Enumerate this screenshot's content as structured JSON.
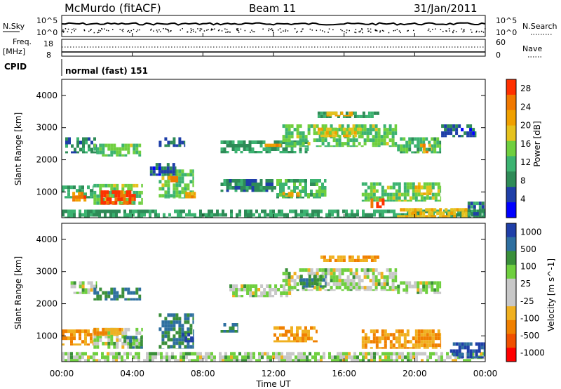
{
  "header": {
    "station": "McMurdo (fitACF)",
    "beam": "Beam 11",
    "date": "31/Jan/2011"
  },
  "noise_panel": {
    "left_label": "N.Sky",
    "right_label": "N.Search",
    "left_ticks": [
      "10^5",
      "10^0"
    ],
    "right_ticks": [
      "10^5",
      "10^0"
    ]
  },
  "freq_panel": {
    "left_label_1": "Freq.",
    "left_label_2": "[MHz]",
    "right_label": "Nave",
    "left_ticks": [
      "18",
      "8"
    ],
    "right_ticks": [
      "60",
      "0"
    ]
  },
  "cpid": {
    "label": "CPID",
    "value": "normal (fast) 151"
  },
  "x_axis": {
    "title": "Time UT",
    "ticks": [
      "00:00",
      "04:00",
      "08:00",
      "12:00",
      "16:00",
      "20:00",
      "00:00"
    ]
  },
  "colors": {
    "power_scale": [
      "#0000ff",
      "#1f3fa8",
      "#2e8b57",
      "#3cb371",
      "#6fcf3f",
      "#e6c21e",
      "#f0a000",
      "#f07800",
      "#ff3000"
    ],
    "velocity_scale": [
      "#ff0000",
      "#f05000",
      "#f08000",
      "#f0b020",
      "#c8c8c8",
      "#c8c8c8",
      "#6fcf3f",
      "#3a8f3a",
      "#2e6fa0",
      "#1f3fa8"
    ]
  },
  "chart_data": [
    {
      "type": "heatmap",
      "title": "",
      "xlabel": "Time UT",
      "ylabel": "Slant Range [km]",
      "xlim": [
        0,
        24
      ],
      "ylim": [
        200,
        4500
      ],
      "y_ticks": [
        "1000",
        "2000",
        "3000",
        "4000"
      ],
      "colorbar": {
        "label": "Power [dB]",
        "ticks": [
          "4",
          "8",
          "12",
          "16",
          "20",
          "24",
          "28"
        ],
        "range": [
          0,
          30
        ]
      },
      "regions": [
        {
          "t0": 0.2,
          "t1": 2.0,
          "r0": 2200,
          "r1": 2700,
          "v": 8
        },
        {
          "t0": 1.8,
          "t1": 4.5,
          "r0": 2100,
          "r1": 2500,
          "v": 14
        },
        {
          "t0": 5.5,
          "t1": 7.0,
          "r0": 2400,
          "r1": 2700,
          "v": 6
        },
        {
          "t0": 9.0,
          "t1": 14.0,
          "r0": 2200,
          "r1": 2600,
          "v": 10
        },
        {
          "t0": 11.5,
          "t1": 13.0,
          "r0": 2400,
          "r1": 2500,
          "v": 22
        },
        {
          "t0": 12.5,
          "t1": 19.0,
          "r0": 2400,
          "r1": 3100,
          "v": 14
        },
        {
          "t0": 14.5,
          "t1": 17.0,
          "r0": 2700,
          "r1": 3000,
          "v": 18
        },
        {
          "t0": 19.0,
          "t1": 21.5,
          "r0": 2200,
          "r1": 2700,
          "v": 12
        },
        {
          "t0": 20.3,
          "t1": 21.0,
          "r0": 2200,
          "r1": 2500,
          "v": 22
        },
        {
          "t0": 14.5,
          "t1": 18.0,
          "r0": 3300,
          "r1": 3500,
          "v": 10
        },
        {
          "t0": 15.0,
          "t1": 16.5,
          "r0": 3350,
          "r1": 3500,
          "v": 20
        },
        {
          "t0": 21.5,
          "t1": 23.5,
          "r0": 2700,
          "r1": 3100,
          "v": 6
        },
        {
          "t0": 0.0,
          "t1": 1.8,
          "r0": 800,
          "r1": 1200,
          "v": 10
        },
        {
          "t0": 0.6,
          "t1": 1.4,
          "r0": 700,
          "r1": 1000,
          "v": 24
        },
        {
          "t0": 1.8,
          "t1": 4.6,
          "r0": 600,
          "r1": 1250,
          "v": 14
        },
        {
          "t0": 2.2,
          "t1": 4.2,
          "r0": 600,
          "r1": 1050,
          "v": 28
        },
        {
          "t0": 5.5,
          "t1": 7.5,
          "r0": 800,
          "r1": 1700,
          "v": 14
        },
        {
          "t0": 6.0,
          "t1": 6.6,
          "r0": 1300,
          "r1": 1600,
          "v": 24
        },
        {
          "t0": 7.0,
          "t1": 7.6,
          "r0": 800,
          "r1": 1000,
          "v": 22
        },
        {
          "t0": 9.0,
          "t1": 12.0,
          "r0": 1000,
          "r1": 1400,
          "v": 8
        },
        {
          "t0": 12.0,
          "t1": 15.0,
          "r0": 800,
          "r1": 1400,
          "v": 12
        },
        {
          "t0": 12.5,
          "t1": 13.5,
          "r0": 850,
          "r1": 1000,
          "v": 22
        },
        {
          "t0": 17.0,
          "t1": 21.5,
          "r0": 700,
          "r1": 1300,
          "v": 14
        },
        {
          "t0": 17.5,
          "t1": 18.3,
          "r0": 500,
          "r1": 800,
          "v": 26
        },
        {
          "t0": 20.0,
          "t1": 21.0,
          "r0": 900,
          "r1": 1200,
          "v": 20
        },
        {
          "t0": 5.0,
          "t1": 6.5,
          "r0": 1500,
          "r1": 1900,
          "v": 6
        },
        {
          "t0": 0.0,
          "t1": 24.0,
          "r0": 200,
          "r1": 450,
          "v": 10
        },
        {
          "t0": 19.0,
          "t1": 23.0,
          "r0": 200,
          "r1": 500,
          "v": 20
        },
        {
          "t0": 23.0,
          "t1": 24.0,
          "r0": 200,
          "r1": 700,
          "v": 8
        }
      ]
    },
    {
      "type": "heatmap",
      "title": "",
      "xlabel": "Time UT",
      "ylabel": "Slant Range [km]",
      "xlim": [
        0,
        24
      ],
      "ylim": [
        200,
        4500
      ],
      "y_ticks": [
        "1000",
        "2000",
        "3000",
        "4000"
      ],
      "colorbar": {
        "label": "Velocity [m s^-1]",
        "ticks": [
          "1000",
          "500",
          "100",
          "25",
          "-25",
          "-100",
          "-500",
          "-1000"
        ],
        "range": [
          -1000,
          1000
        ]
      },
      "regions": [
        {
          "t0": 0.5,
          "t1": 2.0,
          "r0": 2300,
          "r1": 2700,
          "v": 0
        },
        {
          "t0": 1.8,
          "t1": 4.5,
          "r0": 2100,
          "r1": 2500,
          "v": 100
        },
        {
          "t0": 9.5,
          "t1": 13.0,
          "r0": 2200,
          "r1": 2600,
          "v": 0
        },
        {
          "t0": 12.5,
          "t1": 19.0,
          "r0": 2400,
          "r1": 3100,
          "v": 0
        },
        {
          "t0": 13.5,
          "t1": 15.0,
          "r0": 2500,
          "r1": 2900,
          "v": 100
        },
        {
          "t0": 19.0,
          "t1": 21.5,
          "r0": 2300,
          "r1": 2700,
          "v": 0
        },
        {
          "t0": 14.5,
          "t1": 18.0,
          "r0": 3300,
          "r1": 3500,
          "v": -100
        },
        {
          "t0": 0.0,
          "t1": 1.8,
          "r0": 700,
          "r1": 1200,
          "v": -100
        },
        {
          "t0": 1.8,
          "t1": 4.6,
          "r0": 600,
          "r1": 1250,
          "v": 0
        },
        {
          "t0": 1.8,
          "t1": 3.5,
          "r0": 1000,
          "r1": 1250,
          "v": -100
        },
        {
          "t0": 3.5,
          "t1": 4.6,
          "r0": 600,
          "r1": 1000,
          "v": 100
        },
        {
          "t0": 5.5,
          "t1": 7.5,
          "r0": 600,
          "r1": 1700,
          "v": 100
        },
        {
          "t0": 6.8,
          "t1": 7.5,
          "r0": 800,
          "r1": 1200,
          "v": 500
        },
        {
          "t0": 12.0,
          "t1": 14.5,
          "r0": 800,
          "r1": 1300,
          "v": -100
        },
        {
          "t0": 17.0,
          "t1": 21.5,
          "r0": 600,
          "r1": 1200,
          "v": -100
        },
        {
          "t0": 9.0,
          "t1": 10.0,
          "r0": 1100,
          "r1": 1400,
          "v": 100
        },
        {
          "t0": 0.0,
          "t1": 24.0,
          "r0": 200,
          "r1": 500,
          "v": 0
        },
        {
          "t0": 22.0,
          "t1": 24.0,
          "r0": 300,
          "r1": 800,
          "v": 500
        }
      ]
    }
  ]
}
